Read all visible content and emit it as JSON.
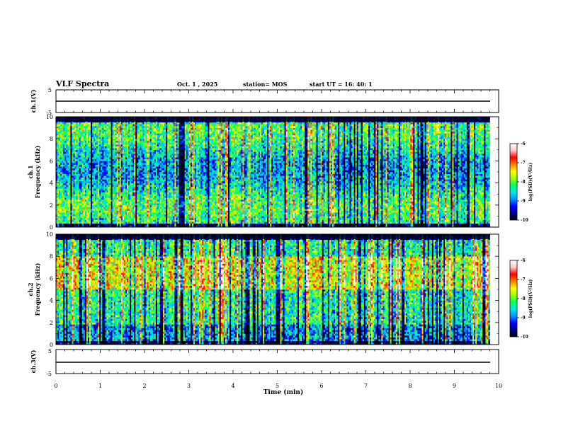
{
  "header": {
    "title": "VLF Spectra",
    "date": "Oct. 1 , 2025",
    "station": "station= MOS",
    "start_ut": "start UT =  16: 40: 1"
  },
  "chart_data": [
    {
      "type": "line",
      "name": "ch1-waveform",
      "ylabel": "ch.1(V)",
      "ylim": [
        -5,
        5
      ],
      "yticks": [
        "5",
        "-5"
      ],
      "xlim": [
        0,
        10
      ],
      "baseline": 0
    },
    {
      "type": "heatmap",
      "name": "ch1-spectrogram",
      "ylabel": "ch.1 Frequency (kHz)",
      "ylabel_line1": "ch.1",
      "ylabel_line2": "Frequency (kHz)",
      "ylim": [
        0,
        10
      ],
      "yticks": [
        "0",
        "2",
        "4",
        "6",
        "8",
        "10"
      ],
      "xlim": [
        0,
        10
      ],
      "data_end_min": 9.8,
      "colorbar": {
        "label": "log(PSD)(V²/Hz)",
        "ticks": [
          "-6",
          "-7",
          "-8",
          "-9",
          "-10"
        ],
        "range": [
          -10,
          -6
        ]
      }
    },
    {
      "type": "heatmap",
      "name": "ch2-spectrogram",
      "ylabel": "ch.2 Frequency (kHz)",
      "ylabel_line1": "ch.2",
      "ylabel_line2": "Frequency (kHz)",
      "ylim": [
        0,
        10
      ],
      "yticks": [
        "0",
        "2",
        "4",
        "6",
        "8",
        "10"
      ],
      "xlim": [
        0,
        10
      ],
      "data_end_min": 9.8,
      "colorbar": {
        "label": "log(PSD)(V²/Hz)",
        "ticks": [
          "-6",
          "-7",
          "-8",
          "-9",
          "-10"
        ],
        "range": [
          -10,
          -6
        ]
      }
    },
    {
      "type": "line",
      "name": "ch3-waveform",
      "ylabel": "ch.3(V)",
      "ylim": [
        -5,
        5
      ],
      "yticks": [
        "5",
        "-5"
      ],
      "xlim": [
        0,
        10
      ],
      "baseline": 0,
      "xlabel": "Time (min)",
      "xticks": [
        "0",
        "1",
        "2",
        "3",
        "4",
        "5",
        "6",
        "7",
        "8",
        "9",
        "10"
      ]
    }
  ],
  "colors": {
    "colormap": [
      "#000000",
      "#00008a",
      "#0000ff",
      "#0096ff",
      "#00e6e6",
      "#00ff60",
      "#a0ff00",
      "#ffff00",
      "#ff8000",
      "#ff0000",
      "#ffc8c8",
      "#ffffff"
    ]
  }
}
